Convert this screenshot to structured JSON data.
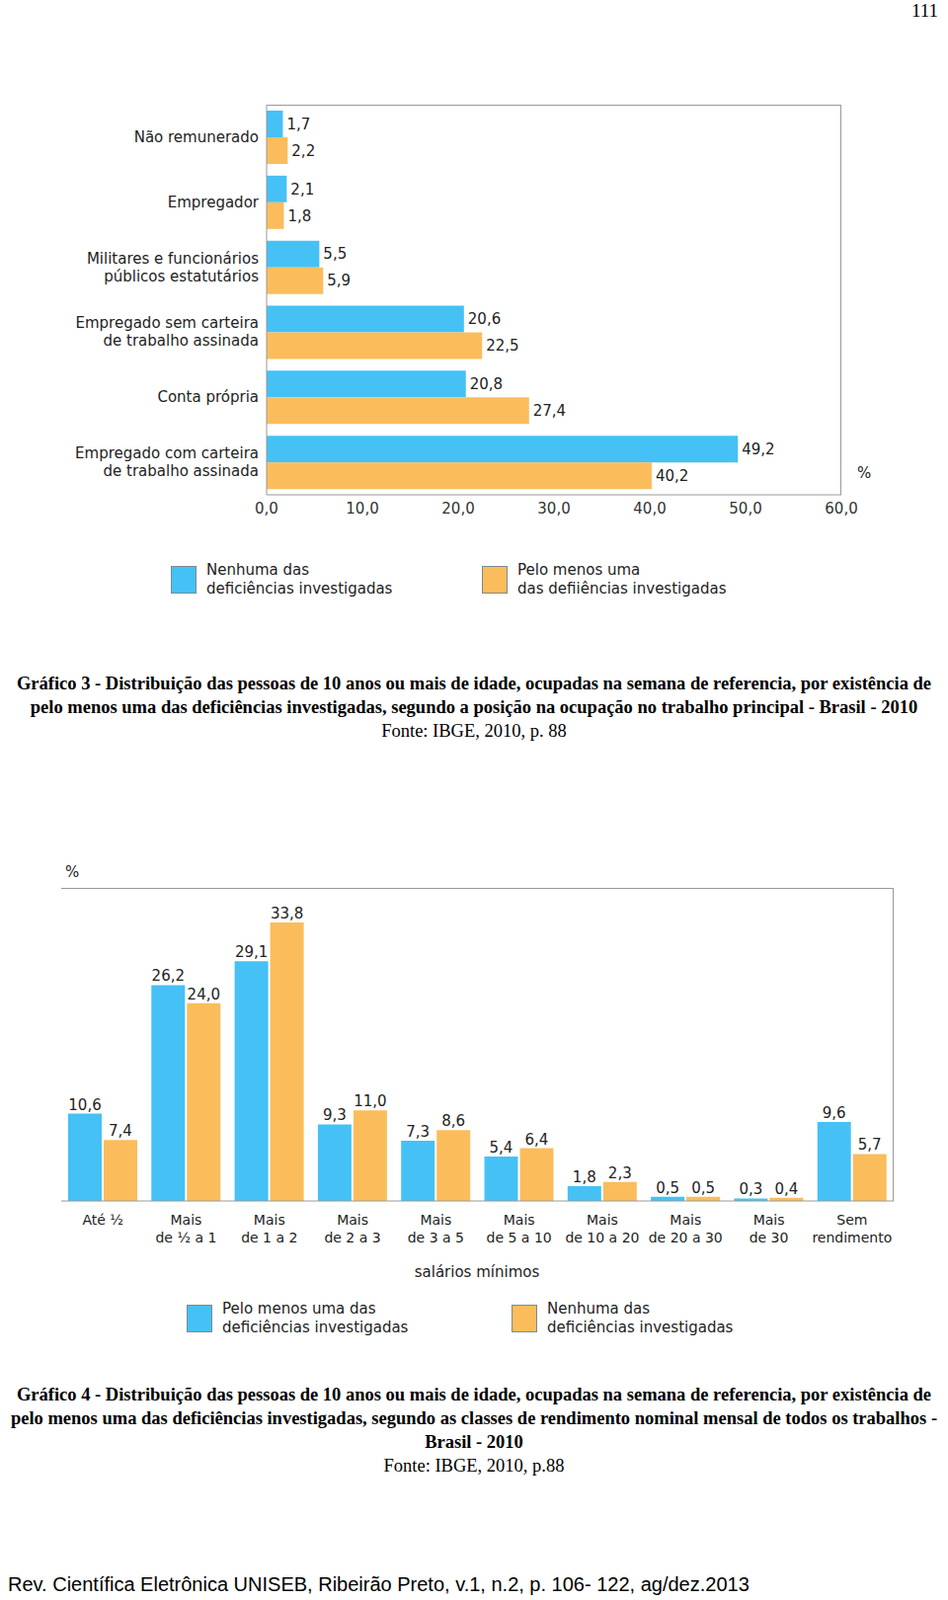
{
  "page_number": "111",
  "chart_data": [
    {
      "type": "bar",
      "orientation": "horizontal",
      "title": "Gráfico 3 - Distribuição das pessoas de 10 anos ou mais de idade, ocupadas na semana de referencia, por existência de pelo menos uma das deficiências investigadas, segundo a posição na ocupação no trabalho principal - Brasil - 2010",
      "subtitle": "Fonte: IBGE, 2010, p. 88",
      "categories": [
        "Não remunerado",
        "Empregador",
        "Militares e funcionários\npúblicos estatutários",
        "Empregado sem carteira\nde trabalho assinada",
        "Conta própria",
        "Empregado com carteira\nde trabalho assinada"
      ],
      "series": [
        {
          "name": "Nenhuma das\ndeficiências investigadas",
          "color": "#45c1f6",
          "values": [
            1.7,
            2.1,
            5.5,
            20.6,
            20.8,
            49.2
          ],
          "value_labels": [
            "1,7",
            "2,1",
            "5,5",
            "20,6",
            "20,8",
            "49,2"
          ]
        },
        {
          "name": "Pelo menos uma\ndas defiiências investigadas",
          "color": "#fbbd5c",
          "values": [
            2.2,
            1.8,
            5.9,
            22.5,
            27.4,
            40.2
          ],
          "value_labels": [
            "2,2",
            "1,8",
            "5,9",
            "22,5",
            "27,4",
            "40,2"
          ]
        }
      ],
      "xlim": [
        0,
        60
      ],
      "xticks": [
        {
          "value": 0,
          "label": "0,0"
        },
        {
          "value": 10,
          "label": "10,0"
        },
        {
          "value": 20,
          "label": "20,0"
        },
        {
          "value": 30,
          "label": "30,0"
        },
        {
          "value": 40,
          "label": "40,0"
        },
        {
          "value": 50,
          "label": "50,0"
        },
        {
          "value": 60,
          "label": "60,0"
        }
      ],
      "xlabel": "%",
      "data_labels": true,
      "legend": "bottom",
      "grid": false
    },
    {
      "type": "bar",
      "title": "Gráfico 4 - Distribuição das pessoas de 10 anos ou mais de idade, ocupadas na semana de referencia, por existência de pelo menos uma das deficiências investigadas, segundo as classes de rendimento nominal mensal de todos os trabalhos - Brasil - 2010",
      "subtitle": "Fonte: IBGE, 2010, p.88",
      "categories": [
        "Até ½",
        "Mais\nde ½ a 1",
        "Mais\nde 1 a 2",
        "Mais\nde 2 a 3",
        "Mais\nde 3 a 5",
        "Mais\nde 5 a 10",
        "Mais\nde 10 a 20",
        "Mais\nde 20 a 30",
        "Mais\nde 30",
        "Sem\nrendimento"
      ],
      "series": [
        {
          "name": "Pelo menos uma das\ndeficiências investigadas",
          "color": "#45c1f6",
          "values": [
            10.6,
            26.2,
            29.1,
            9.3,
            7.3,
            5.4,
            1.8,
            0.5,
            0.3,
            9.6
          ],
          "value_labels": [
            "10,6",
            "26,2",
            "29,1",
            "9,3",
            "7,3",
            "5,4",
            "1,8",
            "0,5",
            "0,3",
            "9,6"
          ]
        },
        {
          "name": "Nenhuma das\ndeficiências investigadas",
          "color": "#fbbd5c",
          "values": [
            7.4,
            24.0,
            33.8,
            11.0,
            8.6,
            6.4,
            2.3,
            0.5,
            0.4,
            5.7
          ],
          "value_labels": [
            "7,4",
            "24,0",
            "33,8",
            "11,0",
            "8,6",
            "6,4",
            "2,3",
            "0,5",
            "0,4",
            "5,7"
          ]
        }
      ],
      "ylim": [
        0,
        38
      ],
      "yticks": [],
      "tick_labels": "x",
      "xlabel": "salários mínimos",
      "ylabel": "%",
      "data_labels": true,
      "legend": "bottom",
      "grid": false
    }
  ],
  "footer": "Rev. Científica Eletrônica UNISEB, Ribeirão Preto, v.1, n.2, p. 106- 122, ag/dez.2013"
}
